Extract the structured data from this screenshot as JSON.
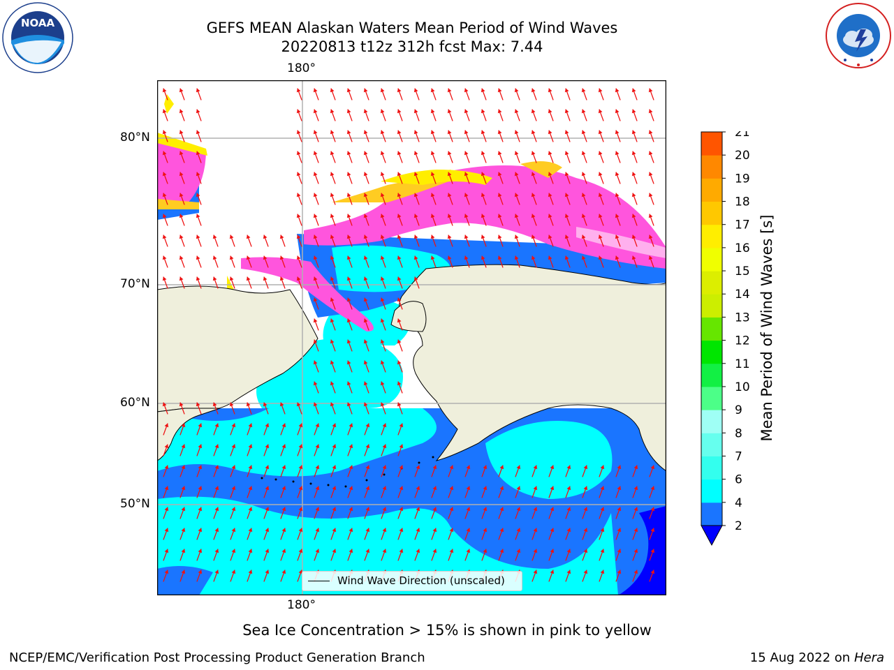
{
  "header": {
    "title_line1": "GEFS MEAN Alaskan Waters Mean Period of Wind Waves",
    "title_line2": "20220813 t12z 312h fcst   Max: 7.44"
  },
  "logos": {
    "noaa_text": "NOAA",
    "noaa_ring": "NATIONAL OCEANIC AND ATMOSPHERIC ADMINISTRATION · U.S. DEPARTMENT OF COMMERCE",
    "nws_ring": "NATIONAL WEATHER SERVICE"
  },
  "map": {
    "lon_label_top": "180°",
    "lon_label_bottom": "180°",
    "lat_labels": [
      "80°N",
      "70°N",
      "60°N",
      "50°N"
    ],
    "legend_text": "Wind Wave Direction (unscaled)",
    "land_color": "#efefdc",
    "ice_note": "Sea Ice Concentration > 15% is shown in pink to yellow"
  },
  "colorbar": {
    "label": "Mean Period of Wind Waves [s]",
    "ticks": [
      "2",
      "4",
      "6",
      "7",
      "8",
      "9",
      "10",
      "11",
      "12",
      "13",
      "14",
      "15",
      "16",
      "17",
      "18",
      "19",
      "20",
      "21"
    ],
    "colors": [
      "#1a75ff",
      "#00ffff",
      "#33ffee",
      "#66ffee",
      "#9ffff5",
      "#4cff88",
      "#12f044",
      "#00e600",
      "#66e600",
      "#ccee00",
      "#dcee00",
      "#f0ff00",
      "#ffee00",
      "#ffc800",
      "#ffaa00",
      "#ff8800",
      "#ff5500",
      "#ff2200",
      "#ff0000"
    ],
    "extend_color": "#0000ff"
  },
  "footer": {
    "left": "NCEP/EMC/Verification Post Processing Product Generation Branch",
    "right_date": "15 Aug 2022 on",
    "right_host": "Hera"
  }
}
